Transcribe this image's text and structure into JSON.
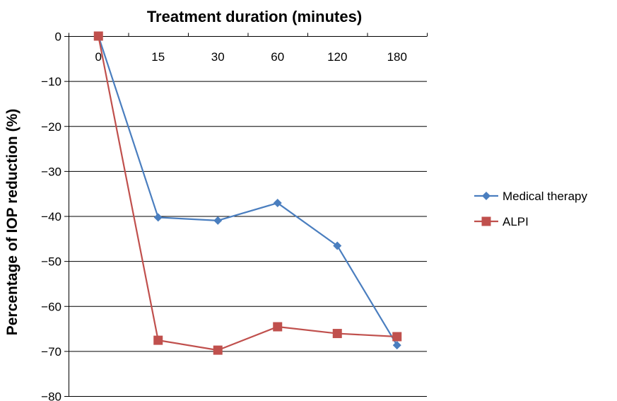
{
  "chart_data": {
    "type": "line",
    "title": "Treatment duration (minutes)",
    "xlabel": "Treatment duration (minutes)",
    "ylabel": "Percentage of IOP reduction (%)",
    "categories": [
      "0",
      "15",
      "30",
      "60",
      "120",
      "180"
    ],
    "ylim": [
      -80,
      0
    ],
    "yticks": [
      0,
      -10,
      -20,
      -30,
      -40,
      -50,
      -60,
      -70,
      -80
    ],
    "ytick_labels": [
      "0",
      "−10",
      "−20",
      "−30",
      "−40",
      "−50",
      "−60",
      "−70",
      "−80"
    ],
    "grid": true,
    "legend_position": "right",
    "x_axis_position": "top",
    "series": [
      {
        "name": "Medical therapy",
        "color": "#4a7ebf",
        "marker": "diamond",
        "values": [
          0,
          -40.3,
          -41,
          -37.1,
          -46.6,
          -68.7
        ]
      },
      {
        "name": "ALPI",
        "color": "#c0504d",
        "marker": "square",
        "values": [
          0,
          -67.6,
          -69.8,
          -64.6,
          -66.1,
          -66.8
        ]
      }
    ]
  }
}
